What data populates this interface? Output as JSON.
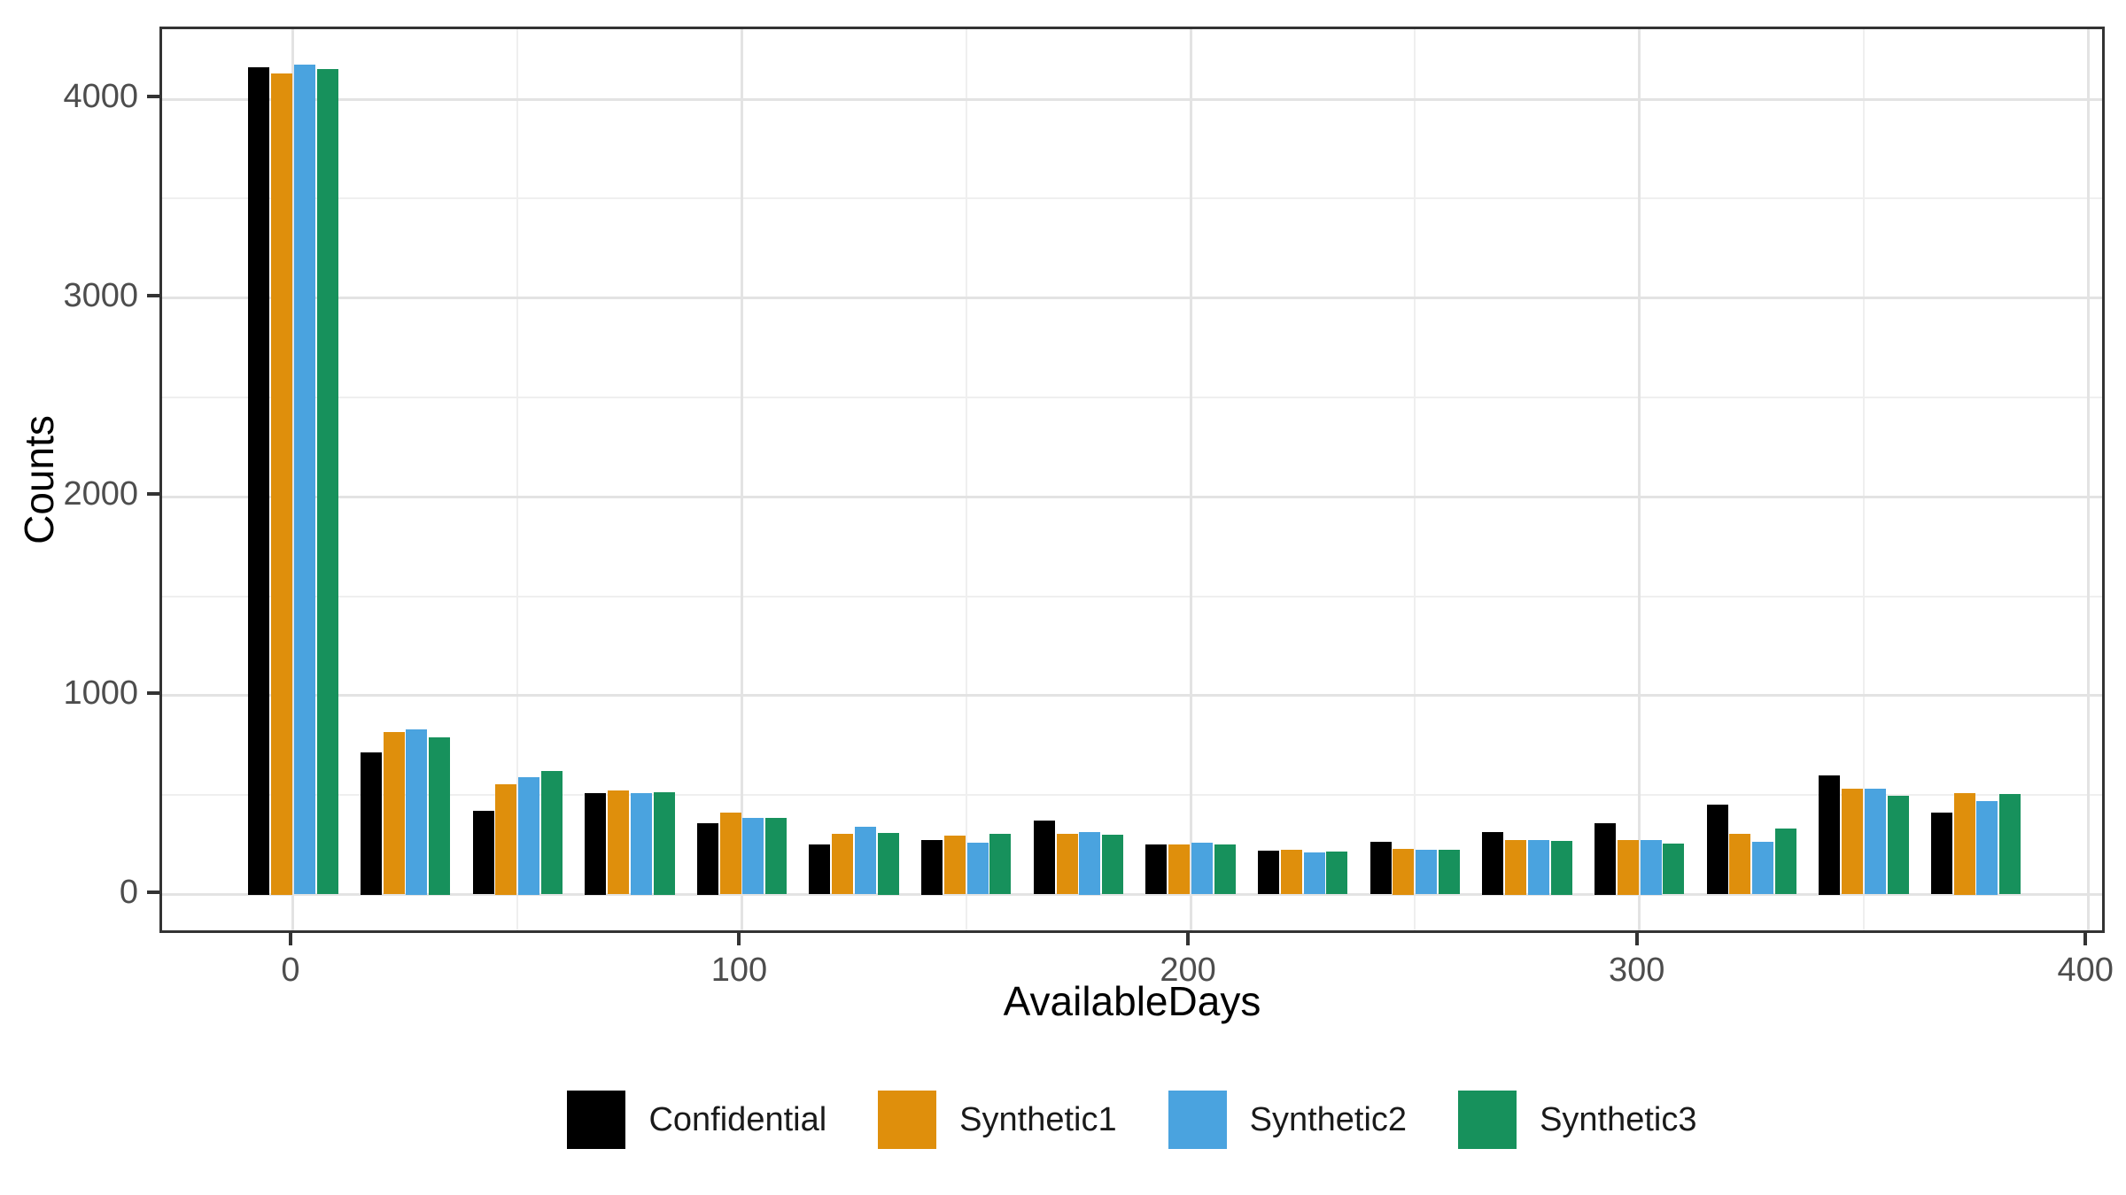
{
  "chart_data": {
    "type": "bar",
    "title": "",
    "xlabel": "AvailableDays",
    "ylabel": "Counts",
    "categories": [
      0,
      25,
      50,
      75,
      100,
      125,
      150,
      175,
      200,
      225,
      250,
      275,
      300,
      325,
      350,
      375
    ],
    "series": [
      {
        "name": "Confidential",
        "color": "#000000",
        "values": [
          4160,
          715,
          420,
          510,
          360,
          250,
          275,
          370,
          250,
          220,
          265,
          315,
          360,
          450,
          600,
          410
        ]
      },
      {
        "name": "Synthetic1",
        "color": "#DF8F0C",
        "values": [
          4130,
          815,
          555,
          525,
          410,
          305,
          295,
          305,
          250,
          225,
          230,
          275,
          275,
          305,
          530,
          510
        ]
      },
      {
        "name": "Synthetic2",
        "color": "#4AA3DF",
        "values": [
          4175,
          830,
          590,
          510,
          385,
          340,
          260,
          315,
          260,
          210,
          225,
          275,
          275,
          265,
          530,
          470
        ]
      },
      {
        "name": "Synthetic3",
        "color": "#17915C",
        "values": [
          4150,
          790,
          620,
          515,
          385,
          310,
          305,
          300,
          250,
          215,
          225,
          270,
          255,
          330,
          495,
          505
        ]
      }
    ],
    "x_ticks": [
      0,
      100,
      200,
      300,
      400
    ],
    "x_minor_ticks": [
      50,
      150,
      250,
      350
    ],
    "y_ticks": [
      0,
      1000,
      2000,
      3000,
      4000
    ],
    "y_minor_ticks": [
      500,
      1500,
      2500,
      3500
    ],
    "xlim": [
      -29.2,
      404.3
    ],
    "ylim": [
      -207,
      4352
    ],
    "grid": "major+minor horizontal and vertical",
    "legend_position": "bottom-center",
    "legend_labels": [
      "Confidential",
      "Synthetic1",
      "Synthetic2",
      "Synthetic3"
    ]
  }
}
